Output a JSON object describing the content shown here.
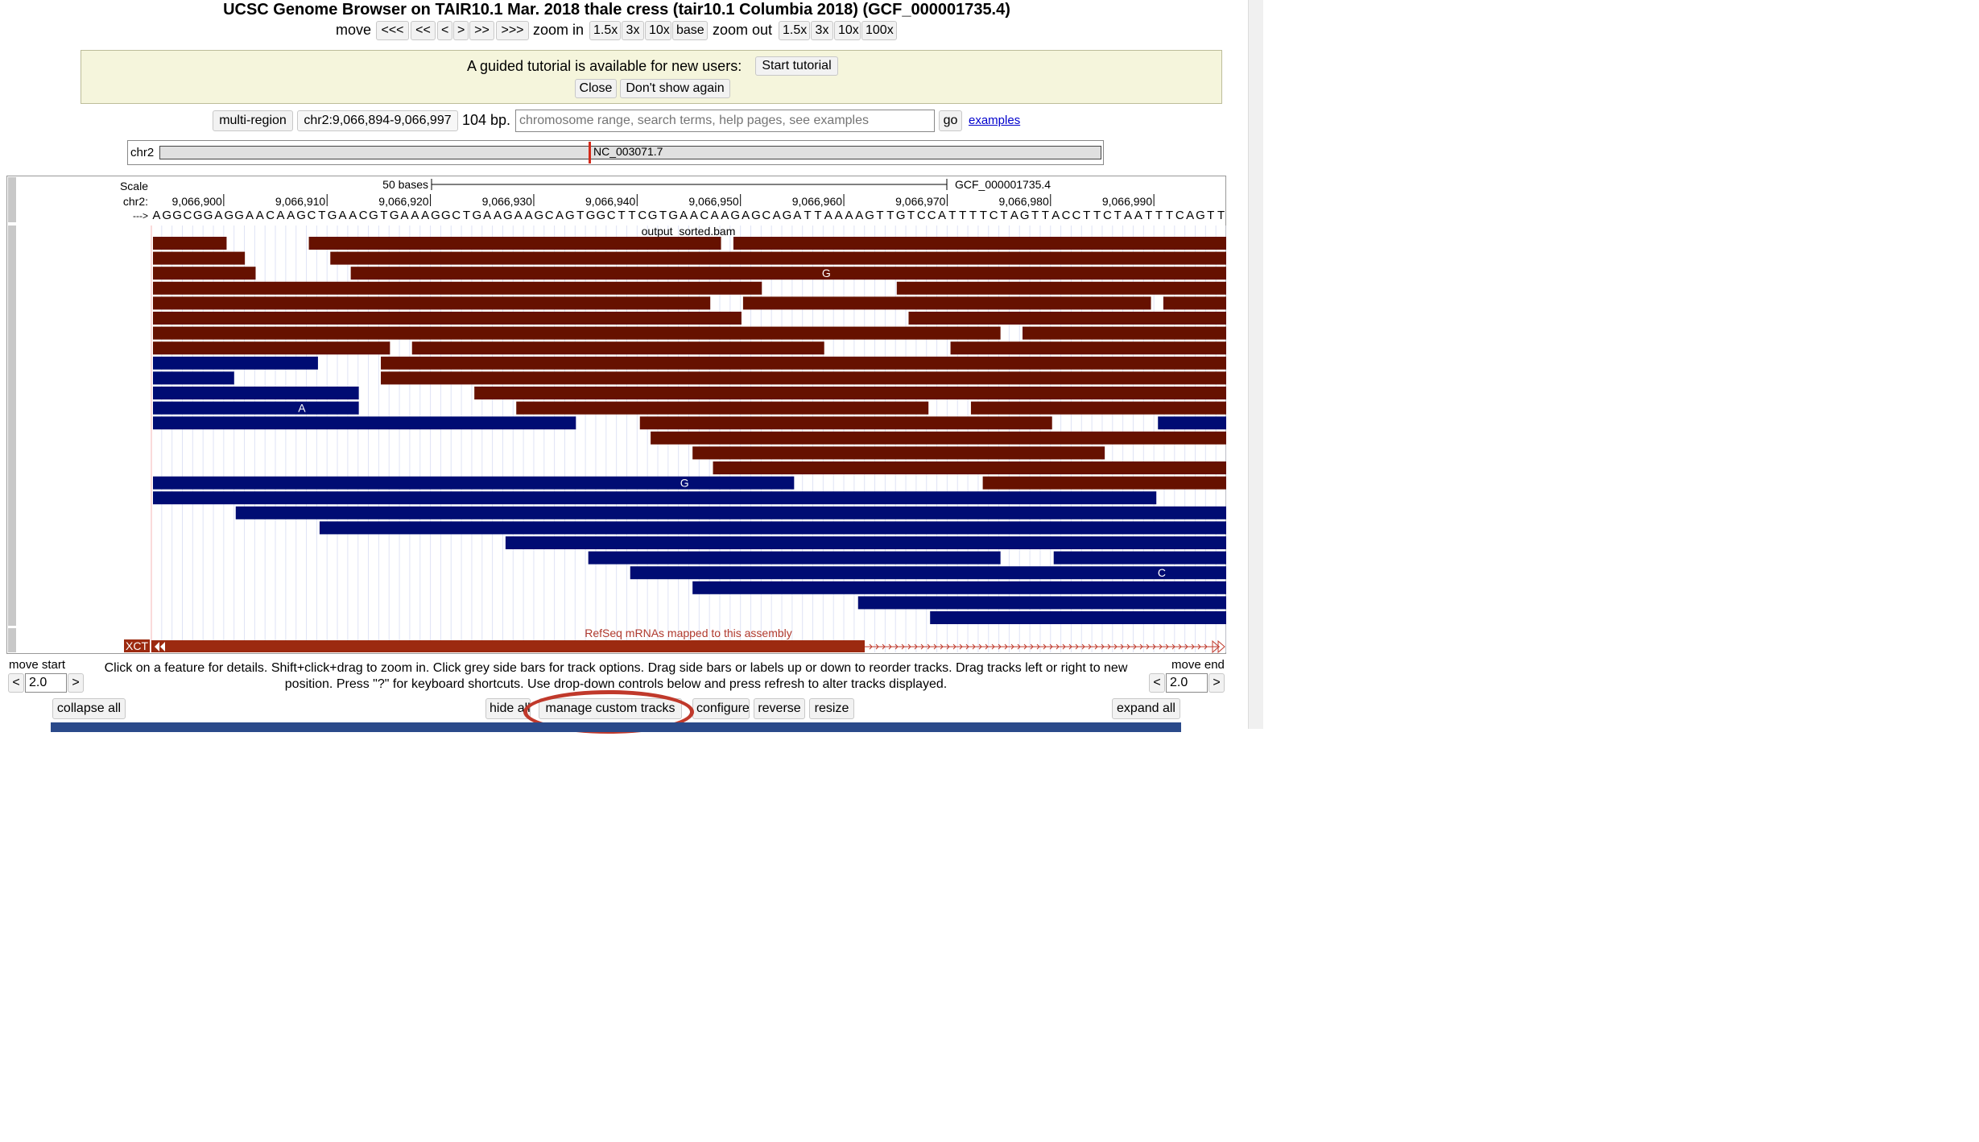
{
  "title": "UCSC Genome Browser on TAIR10.1 Mar. 2018 thale cress (tair10.1 Columbia 2018) (GCF_000001735.4)",
  "nav": {
    "move_label": "move",
    "move_buttons": [
      "<<<",
      "<<",
      "<",
      ">",
      ">>",
      ">>>"
    ],
    "zoom_in_label": "zoom in",
    "zoom_in_buttons": [
      "1.5x",
      "3x",
      "10x",
      "base"
    ],
    "zoom_out_label": "zoom out",
    "zoom_out_buttons": [
      "1.5x",
      "3x",
      "10x",
      "100x"
    ]
  },
  "tutorial": {
    "text": "A guided tutorial is available for new users:",
    "start_button": "Start tutorial",
    "close_button": "Close",
    "dont_show_button": "Don't show again"
  },
  "position": {
    "multi_region_button": "multi-region",
    "range": "chr2:9,066,894-9,066,997",
    "size": "104 bp.",
    "search_placeholder": "chromosome range, search terms, help pages, see examples",
    "go_button": "go",
    "examples_link": "examples"
  },
  "chromosome": {
    "name": "chr2",
    "accession": "NC_003071.7",
    "marker_fraction": 0.455
  },
  "tracks": {
    "scale_label": "Scale",
    "chrom_label": "chr2:",
    "strand_label": "--->",
    "scale_bar_label": "50 bases",
    "assembly_label": "GCF_000001735.4",
    "coordinate_ticks": [
      "9,066,900",
      "9,066,910",
      "9,066,920",
      "9,066,930",
      "9,066,940",
      "9,066,950",
      "9,066,960",
      "9,066,970",
      "9,066,980",
      "9,066,990"
    ],
    "sequence": "AGGCGGAGGAACAAGCTGAACGTGAAAGGCTGAAGAAGCAGTGGCTTCGTGAACAAGAGCAGATTAAAAGTTGTCCATTTTCTAGTTACCTTCTAATTTCAGTT",
    "bam_track_label": "output_sorted.bam",
    "refseq_track_label": "RefSeq mRNAs mapped to this assembly",
    "refseq_gene_label": "XCT",
    "colors": {
      "forward_read": "#661100",
      "reverse_read": "#000c73",
      "refseq": "#9c2a10",
      "mismatch_text": "#ffffff"
    },
    "reads": [
      {
        "row": 0,
        "start": 0.0,
        "end": 0.07,
        "strand": "+"
      },
      {
        "row": 0,
        "start": 0.145,
        "end": 0.53,
        "strand": "+"
      },
      {
        "row": 0,
        "start": 0.54,
        "end": 1.0,
        "strand": "+"
      },
      {
        "row": 1,
        "start": 0.0,
        "end": 0.087,
        "strand": "+"
      },
      {
        "row": 1,
        "start": 0.165,
        "end": 1.0,
        "strand": "+"
      },
      {
        "row": 2,
        "start": 0.0,
        "end": 0.097,
        "strand": "+"
      },
      {
        "row": 2,
        "start": 0.184,
        "end": 1.0,
        "strand": "+",
        "mismatch": "G",
        "mismatch_at": 0.628
      },
      {
        "row": 3,
        "start": 0.0,
        "end": 0.568,
        "strand": "+"
      },
      {
        "row": 3,
        "start": 0.692,
        "end": 1.0,
        "strand": "+"
      },
      {
        "row": 4,
        "start": 0.0,
        "end": 0.52,
        "strand": "+"
      },
      {
        "row": 4,
        "start": 0.549,
        "end": 0.93,
        "strand": "+"
      },
      {
        "row": 4,
        "start": 0.94,
        "end": 1.0,
        "strand": "+"
      },
      {
        "row": 5,
        "start": 0.0,
        "end": 0.549,
        "strand": "+"
      },
      {
        "row": 5,
        "start": 0.703,
        "end": 1.0,
        "strand": "+"
      },
      {
        "row": 6,
        "start": 0.0,
        "end": 0.79,
        "strand": "+"
      },
      {
        "row": 6,
        "start": 0.809,
        "end": 1.0,
        "strand": "+"
      },
      {
        "row": 7,
        "start": 0.0,
        "end": 0.222,
        "strand": "+"
      },
      {
        "row": 7,
        "start": 0.241,
        "end": 0.626,
        "strand": "+"
      },
      {
        "row": 7,
        "start": 0.742,
        "end": 1.0,
        "strand": "+"
      },
      {
        "row": 8,
        "start": 0.0,
        "end": 0.155,
        "strand": "-"
      },
      {
        "row": 8,
        "start": 0.212,
        "end": 1.0,
        "strand": "+"
      },
      {
        "row": 9,
        "start": 0.0,
        "end": 0.077,
        "strand": "-"
      },
      {
        "row": 9,
        "start": 0.212,
        "end": 1.0,
        "strand": "+"
      },
      {
        "row": 10,
        "start": 0.0,
        "end": 0.193,
        "strand": "-"
      },
      {
        "row": 10,
        "start": 0.299,
        "end": 1.0,
        "strand": "+"
      },
      {
        "row": 11,
        "start": 0.0,
        "end": 0.193,
        "strand": "-",
        "mismatch": "A",
        "mismatch_at": 0.14
      },
      {
        "row": 11,
        "start": 0.338,
        "end": 0.723,
        "strand": "+"
      },
      {
        "row": 11,
        "start": 0.761,
        "end": 1.0,
        "strand": "+"
      },
      {
        "row": 12,
        "start": 0.0,
        "end": 0.395,
        "strand": "-"
      },
      {
        "row": 12,
        "start": 0.453,
        "end": 0.838,
        "strand": "+"
      },
      {
        "row": 12,
        "start": 0.935,
        "end": 1.0,
        "strand": "-"
      },
      {
        "row": 13,
        "start": 0.463,
        "end": 1.0,
        "strand": "+"
      },
      {
        "row": 14,
        "start": 0.502,
        "end": 0.887,
        "strand": "+"
      },
      {
        "row": 15,
        "start": 0.521,
        "end": 1.0,
        "strand": "+"
      },
      {
        "row": 16,
        "start": 0.0,
        "end": 0.598,
        "strand": "-",
        "mismatch": "G",
        "mismatch_at": 0.496
      },
      {
        "row": 16,
        "start": 0.772,
        "end": 1.0,
        "strand": "+"
      },
      {
        "row": 17,
        "start": 0.0,
        "end": 0.935,
        "strand": "-"
      },
      {
        "row": 18,
        "start": 0.077,
        "end": 1.0,
        "strand": "-"
      },
      {
        "row": 19,
        "start": 0.155,
        "end": 1.0,
        "strand": "-"
      },
      {
        "row": 20,
        "start": 0.328,
        "end": 1.0,
        "strand": "-"
      },
      {
        "row": 21,
        "start": 0.405,
        "end": 0.79,
        "strand": "-"
      },
      {
        "row": 21,
        "start": 0.838,
        "end": 1.0,
        "strand": "-"
      },
      {
        "row": 22,
        "start": 0.444,
        "end": 1.0,
        "strand": "-",
        "mismatch": "C",
        "mismatch_at": 0.94
      },
      {
        "row": 23,
        "start": 0.502,
        "end": 1.0,
        "strand": "-"
      },
      {
        "row": 24,
        "start": 0.656,
        "end": 1.0,
        "strand": "-"
      },
      {
        "row": 25,
        "start": 0.723,
        "end": 1.0,
        "strand": "-"
      }
    ]
  },
  "move_start": {
    "label": "move start",
    "value": "2.0",
    "left": "<",
    "right": ">"
  },
  "move_end": {
    "label": "move end",
    "value": "2.0",
    "left": "<",
    "right": ">"
  },
  "instructions": "Click on a feature for details. Shift+click+drag to zoom in. Click grey side bars for track options. Drag side bars or labels up or down to reorder tracks. Drag tracks left or right to new position. Press \"?\" for keyboard shortcuts. Use drop-down controls below and press refresh to alter tracks displayed.",
  "bottom_buttons": {
    "collapse_all": "collapse all",
    "hide_all": "hide all",
    "manage_custom_tracks": "manage custom tracks",
    "configure": "configure",
    "reverse": "reverse",
    "resize": "resize",
    "expand_all": "expand all"
  }
}
